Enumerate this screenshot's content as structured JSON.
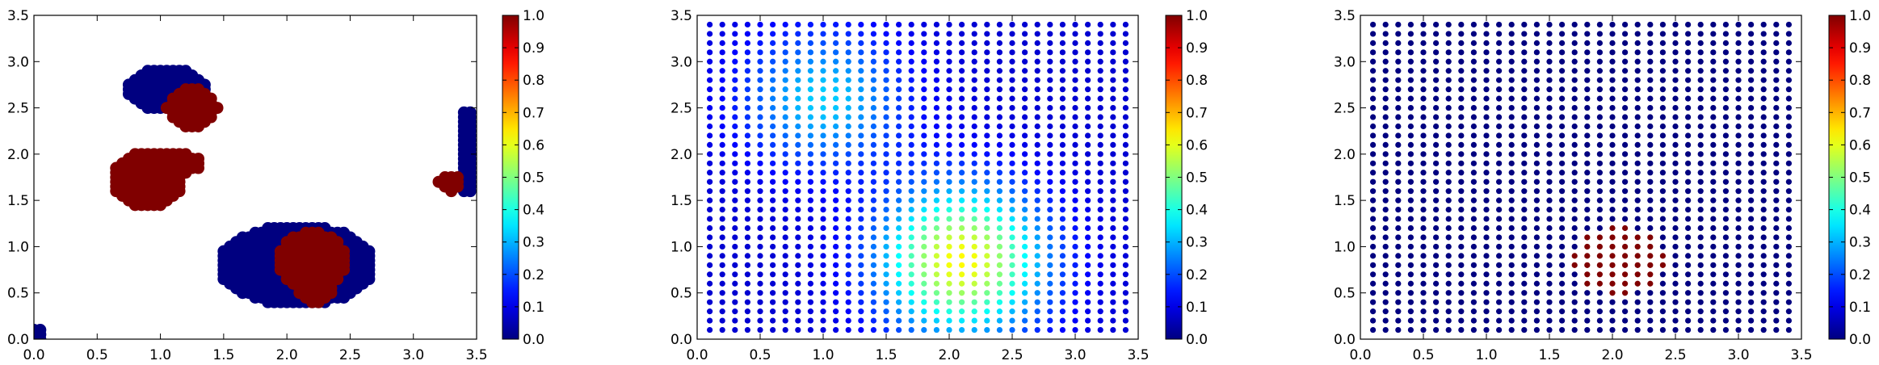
{
  "chart_data": [
    {
      "type": "scatter",
      "title": "",
      "xlabel": "",
      "ylabel": "",
      "xlim": [
        0.0,
        3.5
      ],
      "ylim": [
        0.0,
        3.5
      ],
      "x_ticks": [
        "0.0",
        "0.5",
        "1.0",
        "1.5",
        "2.0",
        "2.5",
        "3.0",
        "3.5"
      ],
      "y_ticks": [
        "0.0",
        "0.5",
        "1.0",
        "1.5",
        "2.0",
        "2.5",
        "3.0",
        "3.5"
      ],
      "colormap": "jet",
      "clim": [
        0.0,
        1.0
      ],
      "colorbar_ticks": [
        "0.0",
        "0.1",
        "0.2",
        "0.3",
        "0.4",
        "0.5",
        "0.6",
        "0.7",
        "0.8",
        "0.9",
        "1.0"
      ],
      "grid": false,
      "marker_spacing": 0.05,
      "regions": [
        {
          "shape": "ellipse",
          "cx": 1.05,
          "cy": 2.7,
          "rx": 0.32,
          "ry": 0.24,
          "value": 0.0
        },
        {
          "shape": "ellipse",
          "cx": 1.25,
          "cy": 2.5,
          "rx": 0.2,
          "ry": 0.22,
          "value": 1.0
        },
        {
          "shape": "ellipse",
          "cx": 0.9,
          "cy": 1.72,
          "rx": 0.28,
          "ry": 0.3,
          "value": 1.0
        },
        {
          "shape": "ellipse",
          "cx": 1.12,
          "cy": 1.9,
          "rx": 0.2,
          "ry": 0.12,
          "value": 1.0
        },
        {
          "shape": "ellipse",
          "cx": 2.08,
          "cy": 0.8,
          "rx": 0.62,
          "ry": 0.44,
          "value": 0.0
        },
        {
          "shape": "ellipse",
          "cx": 2.2,
          "cy": 0.85,
          "rx": 0.28,
          "ry": 0.32,
          "value": 1.0
        },
        {
          "shape": "ellipse",
          "cx": 2.22,
          "cy": 0.55,
          "rx": 0.14,
          "ry": 0.16,
          "value": 1.0
        },
        {
          "shape": "rect",
          "x0": 3.38,
          "x1": 3.48,
          "y0": 1.6,
          "y1": 2.45,
          "value": 0.0
        },
        {
          "shape": "ellipse",
          "cx": 3.3,
          "cy": 1.7,
          "rx": 0.1,
          "ry": 0.1,
          "value": 1.0
        },
        {
          "shape": "rect",
          "x0": 0.0,
          "x1": 0.05,
          "y0": 0.0,
          "y1": 0.1,
          "value": 0.0
        }
      ]
    },
    {
      "type": "scatter",
      "title": "",
      "xlabel": "",
      "ylabel": "",
      "xlim": [
        0.0,
        3.5
      ],
      "ylim": [
        0.0,
        3.5
      ],
      "x_ticks": [
        "0.0",
        "0.5",
        "1.0",
        "1.5",
        "2.0",
        "2.5",
        "3.0",
        "3.5"
      ],
      "y_ticks": [
        "0.0",
        "0.5",
        "1.0",
        "1.5",
        "2.0",
        "2.5",
        "3.0",
        "3.5"
      ],
      "colormap": "jet",
      "clim": [
        0.0,
        1.0
      ],
      "colorbar_ticks": [
        "0.0",
        "0.1",
        "0.2",
        "0.3",
        "0.4",
        "0.5",
        "0.6",
        "0.7",
        "0.8",
        "0.9",
        "1.0"
      ],
      "grid": false,
      "grid_x": {
        "start": 0.1,
        "stop": 3.4,
        "step": 0.1
      },
      "grid_y": {
        "start": 0.1,
        "stop": 3.4,
        "step": 0.1
      },
      "field": {
        "base": 0.08,
        "bumps": [
          {
            "cx": 2.1,
            "cy": 0.85,
            "sx": 0.45,
            "sy": 0.55,
            "amp": 0.55
          },
          {
            "cx": 1.0,
            "cy": 2.6,
            "sx": 0.45,
            "sy": 0.5,
            "amp": 0.25
          }
        ]
      }
    },
    {
      "type": "scatter",
      "title": "",
      "xlabel": "",
      "ylabel": "",
      "xlim": [
        0.0,
        3.5
      ],
      "ylim": [
        0.0,
        3.5
      ],
      "x_ticks": [
        "0.0",
        "0.5",
        "1.0",
        "1.5",
        "2.0",
        "2.5",
        "3.0",
        "3.5"
      ],
      "y_ticks": [
        "0.0",
        "0.5",
        "1.0",
        "1.5",
        "2.0",
        "2.5",
        "3.0",
        "3.5"
      ],
      "colormap": "jet",
      "clim": [
        0.0,
        1.0
      ],
      "colorbar_ticks": [
        "0.0",
        "0.1",
        "0.2",
        "0.3",
        "0.4",
        "0.5",
        "0.6",
        "0.7",
        "0.8",
        "0.9",
        "1.0"
      ],
      "grid": false,
      "grid_x": {
        "start": 0.1,
        "stop": 3.4,
        "step": 0.1
      },
      "grid_y": {
        "start": 0.1,
        "stop": 3.4,
        "step": 0.1
      },
      "field": {
        "base": 0.0,
        "disc": {
          "cx": 2.05,
          "cy": 0.85,
          "r": 0.36,
          "value": 1.0
        }
      }
    }
  ]
}
